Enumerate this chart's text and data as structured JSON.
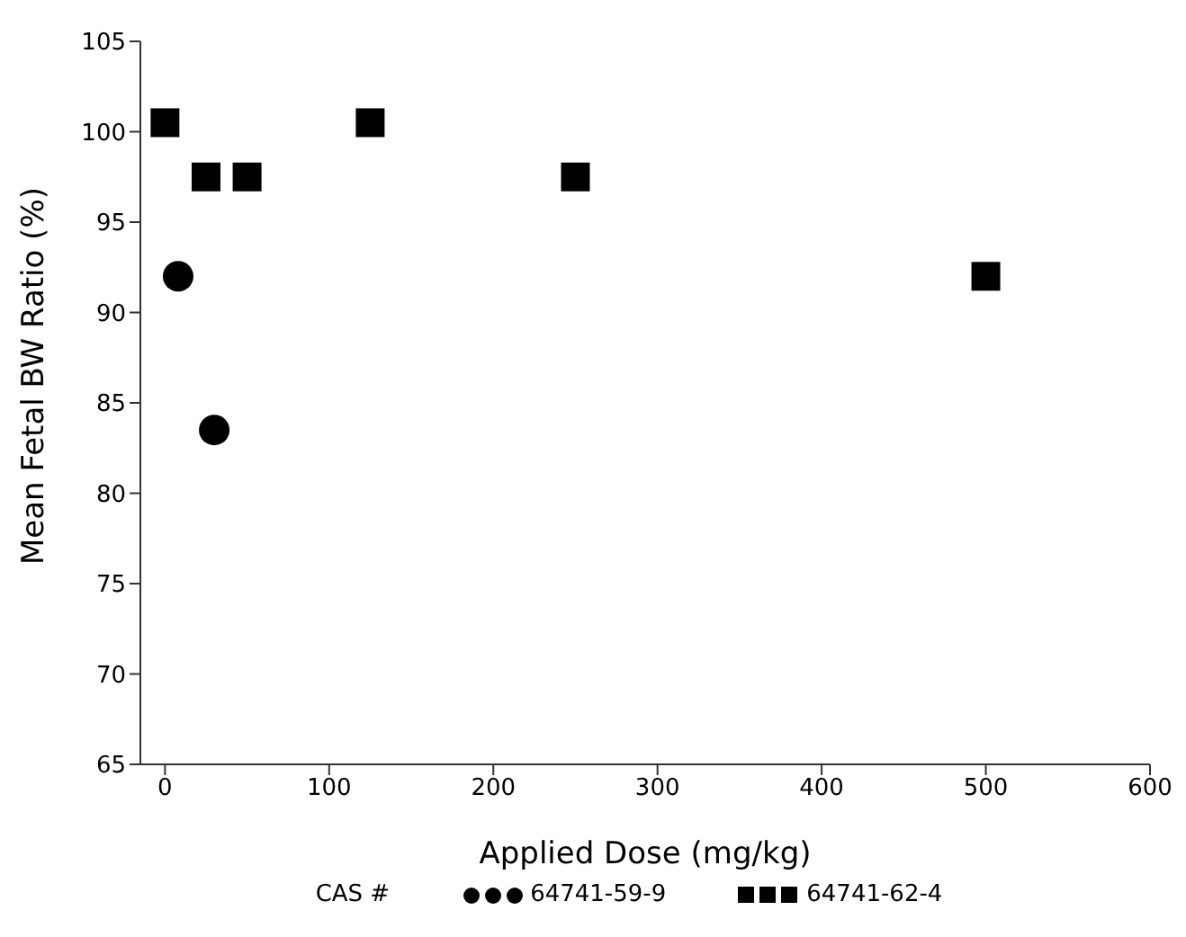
{
  "chart_data": {
    "type": "scatter",
    "xlabel": "Applied Dose (mg/kg)",
    "ylabel": "Mean Fetal BW Ratio (%)",
    "legend_title": "CAS #",
    "legend": "bottom",
    "grid": false,
    "xlim": [
      -15,
      600
    ],
    "xticks": [
      0,
      100,
      200,
      300,
      400,
      500,
      600
    ],
    "ylim": [
      65,
      105
    ],
    "yticks": [
      65,
      70,
      75,
      80,
      85,
      90,
      95,
      100,
      105
    ],
    "series": [
      {
        "name": "64741-59-9",
        "color": "#000000",
        "marker": "circle",
        "x": [
          8,
          30
        ],
        "values": [
          92,
          83.5
        ]
      },
      {
        "name": "64741-62-4",
        "color": "#000000",
        "marker": "square",
        "x": [
          0,
          25,
          50,
          125,
          250,
          500
        ],
        "values": [
          100.5,
          97.5,
          97.5,
          100.5,
          97.5,
          92
        ]
      }
    ]
  }
}
